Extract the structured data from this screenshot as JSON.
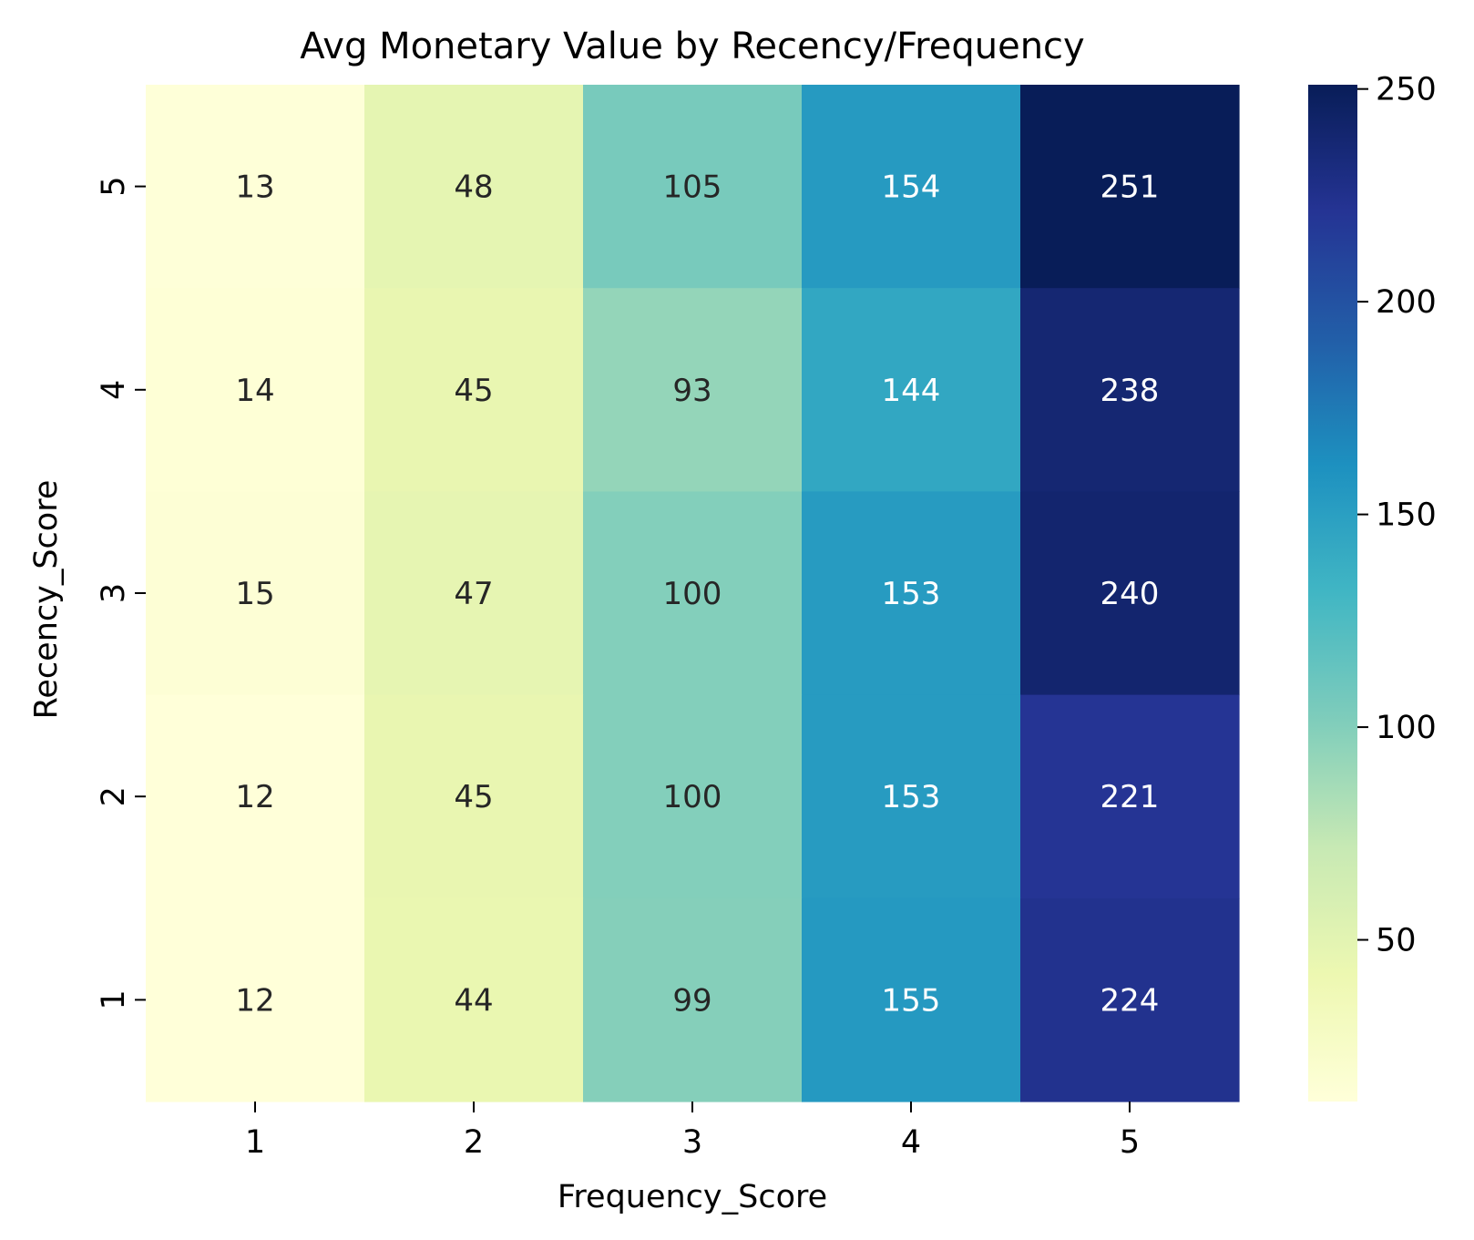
{
  "chart_data": {
    "type": "heatmap",
    "title": "Avg Monetary Value by Recency/Frequency",
    "xlabel": "Frequency_Score",
    "ylabel": "Recency_Score",
    "x_categories": [
      "1",
      "2",
      "3",
      "4",
      "5"
    ],
    "y_categories": [
      "5",
      "4",
      "3",
      "2",
      "1"
    ],
    "values": [
      [
        13,
        48,
        105,
        154,
        251
      ],
      [
        14,
        45,
        93,
        144,
        238
      ],
      [
        15,
        47,
        100,
        153,
        240
      ],
      [
        12,
        45,
        100,
        153,
        221
      ],
      [
        12,
        44,
        99,
        155,
        224
      ]
    ],
    "colormap": "YlGnBu",
    "colorbar": {
      "ticks": [
        50,
        100,
        150,
        200,
        250
      ],
      "range": [
        12,
        251
      ]
    },
    "annotations": true
  }
}
